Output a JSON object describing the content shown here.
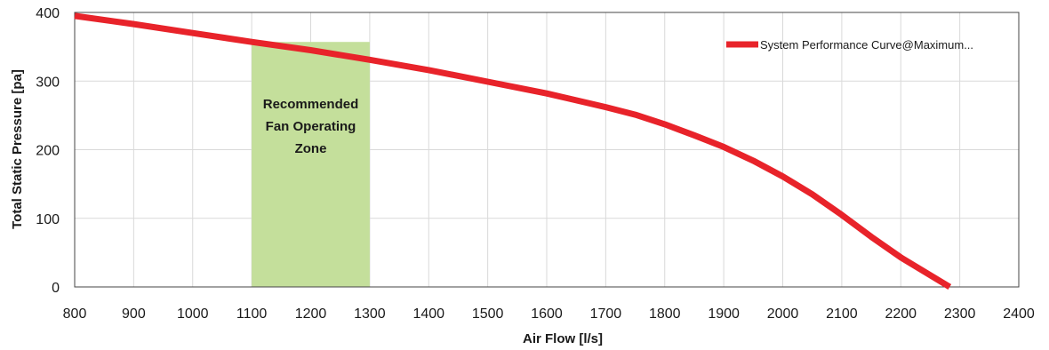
{
  "chart_data": {
    "type": "line",
    "title": "",
    "xlabel": "Air Flow [l/s]",
    "ylabel": "Total Static Pressure [pa]",
    "xlim": [
      800,
      2400
    ],
    "ylim": [
      0,
      400
    ],
    "x_ticks": [
      800,
      900,
      1000,
      1100,
      1200,
      1300,
      1400,
      1500,
      1600,
      1700,
      1800,
      1900,
      2000,
      2100,
      2200,
      2300,
      2400
    ],
    "y_ticks": [
      0,
      100,
      200,
      300,
      400
    ],
    "grid": true,
    "legend_position": "top-right",
    "series": [
      {
        "name": "System Performance Curve@Maximum...",
        "color": "#e8232a",
        "x": [
          800,
          900,
          1000,
          1100,
          1200,
          1300,
          1400,
          1500,
          1600,
          1700,
          1750,
          1800,
          1850,
          1900,
          1950,
          2000,
          2050,
          2100,
          2150,
          2200,
          2283
        ],
        "y": [
          395,
          383,
          370,
          357,
          345,
          331,
          316,
          299,
          282,
          262,
          251,
          237,
          221,
          204,
          184,
          161,
          135,
          105,
          73,
          43,
          0
        ]
      }
    ],
    "annotations": [
      {
        "type": "shaded-region",
        "x_start": 1100,
        "x_end": 1300,
        "y_top": 357,
        "color": "#c4df9b",
        "lines": [
          "Recommended",
          "Fan Operating",
          "Zone"
        ]
      }
    ]
  }
}
